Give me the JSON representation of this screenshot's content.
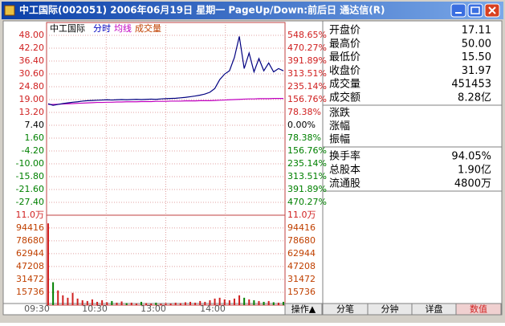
{
  "window": {
    "title": "中工国际(002051)  2006年06月19日  星期一  PageUp/Down:前后日  通达信(R)"
  },
  "chart": {
    "name": "中工国际",
    "legend": [
      "分时",
      "均线",
      "成交量"
    ],
    "price_ticks": [
      {
        "value": 48,
        "label": "48.00"
      },
      {
        "value": 42.2,
        "label": "42.20"
      },
      {
        "value": 36.4,
        "label": "36.40"
      },
      {
        "value": 30.6,
        "label": "30.60"
      },
      {
        "value": 24.8,
        "label": "24.80"
      },
      {
        "value": 19,
        "label": "19.00"
      },
      {
        "value": 13.2,
        "label": "13.20"
      },
      {
        "value": 7.4,
        "label": "7.40"
      },
      {
        "value": 1.6,
        "label": "1.60"
      },
      {
        "value": -4.2,
        "label": "-4.20"
      },
      {
        "value": -10,
        "label": "-10.00"
      },
      {
        "value": -15.8,
        "label": "-15.80"
      },
      {
        "value": -21.6,
        "label": "-21.60"
      },
      {
        "value": -27.4,
        "label": "-27.40"
      }
    ],
    "percent_labels": [
      "548.65%",
      "470.27%",
      "391.89%",
      "313.51%",
      "235.14%",
      "156.76%",
      "78.38%",
      "0.00%",
      "78.38%",
      "156.76%",
      "235.14%",
      "313.51%",
      "391.89%",
      "470.27%"
    ],
    "volume_ticks": [
      {
        "value": 110000,
        "label": "11.0万"
      },
      94416,
      78680,
      62944,
      47208,
      31472,
      15736
    ],
    "time_labels": [
      "09:30",
      "10:30",
      "13:00",
      "14:00"
    ],
    "price": [
      17.1,
      16.4,
      16.8,
      17.2,
      17.5,
      17.8,
      18.0,
      18.3,
      18.5,
      18.6,
      18.7,
      18.8,
      18.9,
      18.8,
      18.9,
      19.0,
      18.9,
      19.0,
      19.1,
      19.0,
      19.1,
      19.2,
      19.1,
      19.3,
      19.4,
      19.5,
      19.6,
      19.8,
      20.0,
      20.3,
      20.6,
      21.0,
      21.5,
      22.3,
      24.0,
      28.0,
      30.5,
      32.0,
      38.0,
      47.5,
      33.0,
      40.0,
      31.5,
      37.5,
      32.0,
      35.5,
      31.5,
      33.0,
      31.97
    ],
    "average": [
      16.8,
      16.8,
      16.9,
      17.0,
      17.1,
      17.2,
      17.3,
      17.4,
      17.5,
      17.6,
      17.7,
      17.7,
      17.8,
      17.8,
      17.9,
      17.9,
      18.0,
      18.0,
      18.0,
      18.1,
      18.1,
      18.1,
      18.2,
      18.2,
      18.2,
      18.3,
      18.3,
      18.3,
      18.4,
      18.4,
      18.4,
      18.5,
      18.5,
      18.5,
      18.6,
      18.7,
      18.8,
      18.9,
      19.0,
      19.1,
      19.2,
      19.3,
      19.3,
      19.4,
      19.4,
      19.4,
      19.5,
      19.5,
      19.5
    ],
    "volume": [
      100000,
      28000,
      18000,
      12000,
      9000,
      15000,
      8000,
      6000,
      5000,
      7000,
      4000,
      6000,
      3500,
      5000,
      3000,
      4500,
      2500,
      3000,
      2000,
      4000,
      2500,
      2000,
      3000,
      1800,
      2500,
      2000,
      3000,
      2500,
      3500,
      4000,
      3000,
      5000,
      4000,
      6000,
      8000,
      9000,
      7000,
      6000,
      8000,
      12000,
      9000,
      7000,
      6000,
      5000,
      4000,
      5000,
      3500,
      3000,
      4000
    ]
  },
  "quote": {
    "rows": [
      {
        "label": "开盘价",
        "value": "17.11"
      },
      {
        "label": "最高价",
        "value": "50.00"
      },
      {
        "label": "最低价",
        "value": "15.50"
      },
      {
        "label": "收盘价",
        "value": "31.97"
      },
      {
        "label": "成交量",
        "value": "451453"
      },
      {
        "label": "成交额",
        "value": "8.28亿"
      }
    ],
    "change_rows": [
      "涨跌",
      "涨幅",
      "振幅"
    ],
    "share_rows": [
      {
        "label": "换手率",
        "value": "94.05%"
      },
      {
        "label": "总股本",
        "value": "1.90亿"
      },
      {
        "label": "流通股",
        "value": "4800万"
      }
    ]
  },
  "tabs": [
    "操作▲",
    "分笔",
    "分钟",
    "详盘",
    "数值"
  ]
}
